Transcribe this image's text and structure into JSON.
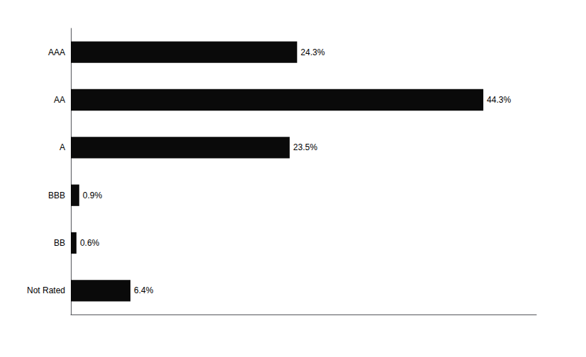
{
  "chart_data": {
    "type": "bar",
    "orientation": "horizontal",
    "categories": [
      "AAA",
      "AA",
      "A",
      "BBB",
      "BB",
      "Not Rated"
    ],
    "values": [
      24.3,
      44.3,
      23.5,
      0.9,
      0.6,
      6.4
    ],
    "value_labels": [
      "24.3%",
      "44.3%",
      "23.5%",
      "0.9%",
      "0.6%",
      "6.4%"
    ],
    "data_labels": true,
    "color": "#0a0a0a",
    "xlim": [
      0,
      50
    ],
    "tick_labels": "y",
    "grid": false
  }
}
